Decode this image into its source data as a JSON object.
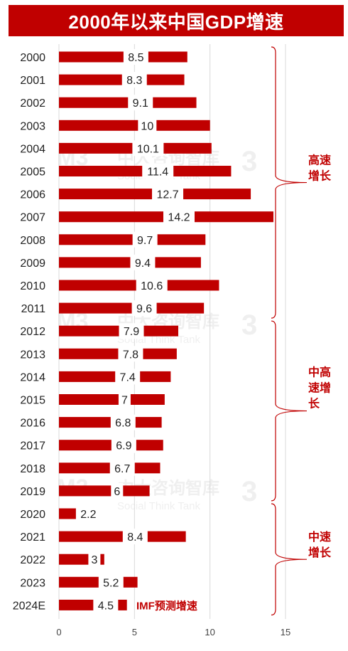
{
  "title": "2000年以来中国GDP增速",
  "colors": {
    "bar": "#c00000",
    "accent_text": "#c00000",
    "brace": "#c00000",
    "label": "#222222",
    "grid": "#d9d9d9"
  },
  "chart_data": {
    "type": "bar",
    "orientation": "horizontal",
    "categories": [
      "2000",
      "2001",
      "2002",
      "2003",
      "2004",
      "2005",
      "2006",
      "2007",
      "2008",
      "2009",
      "2010",
      "2011",
      "2012",
      "2013",
      "2014",
      "2015",
      "2016",
      "2017",
      "2018",
      "2019",
      "2020",
      "2021",
      "2022",
      "2023",
      "2024E"
    ],
    "values": [
      8.5,
      8.3,
      9.1,
      10,
      10.1,
      11.4,
      12.7,
      14.2,
      9.7,
      9.4,
      10.6,
      9.6,
      7.9,
      7.8,
      7.4,
      7,
      6.8,
      6.9,
      6.7,
      6,
      2.2,
      8.4,
      3,
      5.2,
      4.5
    ],
    "data_labels": [
      "8.5",
      "8.3",
      "9.1",
      "10",
      "10.1",
      "11.4",
      "12.7",
      "14.2",
      "9.7",
      "9.4",
      "10.6",
      "9.6",
      "7.9",
      "7.8",
      "7.4",
      "7",
      "6.8",
      "6.9",
      "6.7",
      "6",
      "2.2",
      "8.4",
      "3",
      "5.2",
      "4.5"
    ],
    "xlim": [
      0,
      15
    ],
    "xticks": [
      "0",
      "5",
      "10",
      "15"
    ],
    "grid": "vertical",
    "annotation_2024": "IMF预测增速",
    "groups": [
      {
        "label_lines": [
          "高速",
          "增长"
        ],
        "from": "2000",
        "to": "2011"
      },
      {
        "label_lines": [
          "中高",
          "速增",
          "长"
        ],
        "from": "2012",
        "to": "2019"
      },
      {
        "label_lines": [
          "中速",
          "增长"
        ],
        "from": "2020",
        "to": "2024E"
      }
    ]
  },
  "watermark": {
    "brand": "中大咨询智库",
    "sub": "Social Think Tank"
  }
}
